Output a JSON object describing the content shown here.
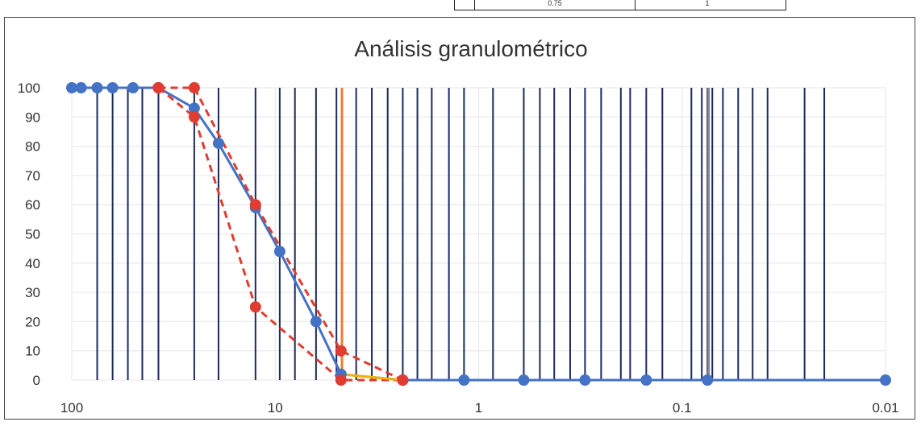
{
  "top_table": {
    "cells": [
      "",
      "0.75",
      "1",
      ""
    ]
  },
  "chart_data": {
    "type": "line",
    "title": "Análisis granulométrico",
    "xlabel": "",
    "ylabel": "",
    "x_scale": "log",
    "x_reversed": true,
    "xlim": [
      100,
      0.01
    ],
    "ylim": [
      0,
      100
    ],
    "y_ticks": [
      0,
      10,
      20,
      30,
      40,
      50,
      60,
      70,
      80,
      90,
      100
    ],
    "x_ticks": [
      {
        "value": 100,
        "label": "100"
      },
      {
        "value": 10,
        "label": "10"
      },
      {
        "value": 1,
        "label": "1"
      },
      {
        "value": 0.1,
        "label": "0.1"
      },
      {
        "value": 0.01,
        "label": "0.01"
      }
    ],
    "grid": true,
    "vertical_lines": {
      "color": "#1b2a5e",
      "x": [
        75,
        63,
        53,
        45,
        37.5,
        25,
        19,
        12.5,
        9.5,
        8,
        6.3,
        5,
        4,
        3.35,
        2.8,
        2.36,
        2,
        1.7,
        1.4,
        1.18,
        0.85,
        0.6,
        0.5,
        0.425,
        0.355,
        0.3,
        0.25,
        0.2,
        0.18,
        0.15,
        0.125,
        0.09,
        0.08,
        0.075,
        0.071,
        0.063,
        0.053,
        0.045,
        0.038,
        0.025,
        0.02
      ]
    },
    "series": [
      {
        "color": "#4472c4",
        "style": "solid",
        "markers": true,
        "points": [
          [
            100,
            100
          ],
          [
            90,
            100
          ],
          [
            75,
            100
          ],
          [
            63,
            100
          ],
          [
            50,
            100
          ],
          [
            37.5,
            100
          ],
          [
            25,
            93
          ],
          [
            19,
            81
          ],
          [
            12.5,
            59
          ],
          [
            9.5,
            44
          ],
          [
            6.3,
            20
          ],
          [
            4.75,
            2
          ],
          [
            2.36,
            0
          ],
          [
            1.18,
            0
          ],
          [
            0.6,
            0
          ],
          [
            0.3,
            0
          ],
          [
            0.15,
            0
          ],
          [
            0.075,
            0
          ],
          [
            0.01,
            0
          ]
        ]
      },
      {
        "color": "#e03c31",
        "style": "dashed",
        "markers": true,
        "points": [
          [
            37.5,
            100
          ],
          [
            25,
            100
          ],
          [
            12.5,
            60
          ],
          [
            4.75,
            10
          ],
          [
            2.36,
            0
          ]
        ]
      },
      {
        "color": "#e03c31",
        "style": "dashed",
        "markers": true,
        "points": [
          [
            37.5,
            100
          ],
          [
            25,
            90
          ],
          [
            12.5,
            25
          ],
          [
            4.75,
            0
          ],
          [
            2.36,
            0
          ]
        ]
      },
      {
        "color": "#f0b400",
        "style": "solid",
        "markers": false,
        "points": [
          [
            4.75,
            2
          ],
          [
            2.36,
            0
          ]
        ]
      },
      {
        "color": "#ed7d31",
        "style": "solid",
        "markers": false,
        "points": [
          [
            4.7,
            0
          ],
          [
            4.7,
            100
          ]
        ]
      },
      {
        "color": "#8a8a8a",
        "style": "solid",
        "markers": false,
        "points": [
          [
            0.074,
            0
          ],
          [
            0.074,
            100
          ]
        ]
      }
    ]
  }
}
